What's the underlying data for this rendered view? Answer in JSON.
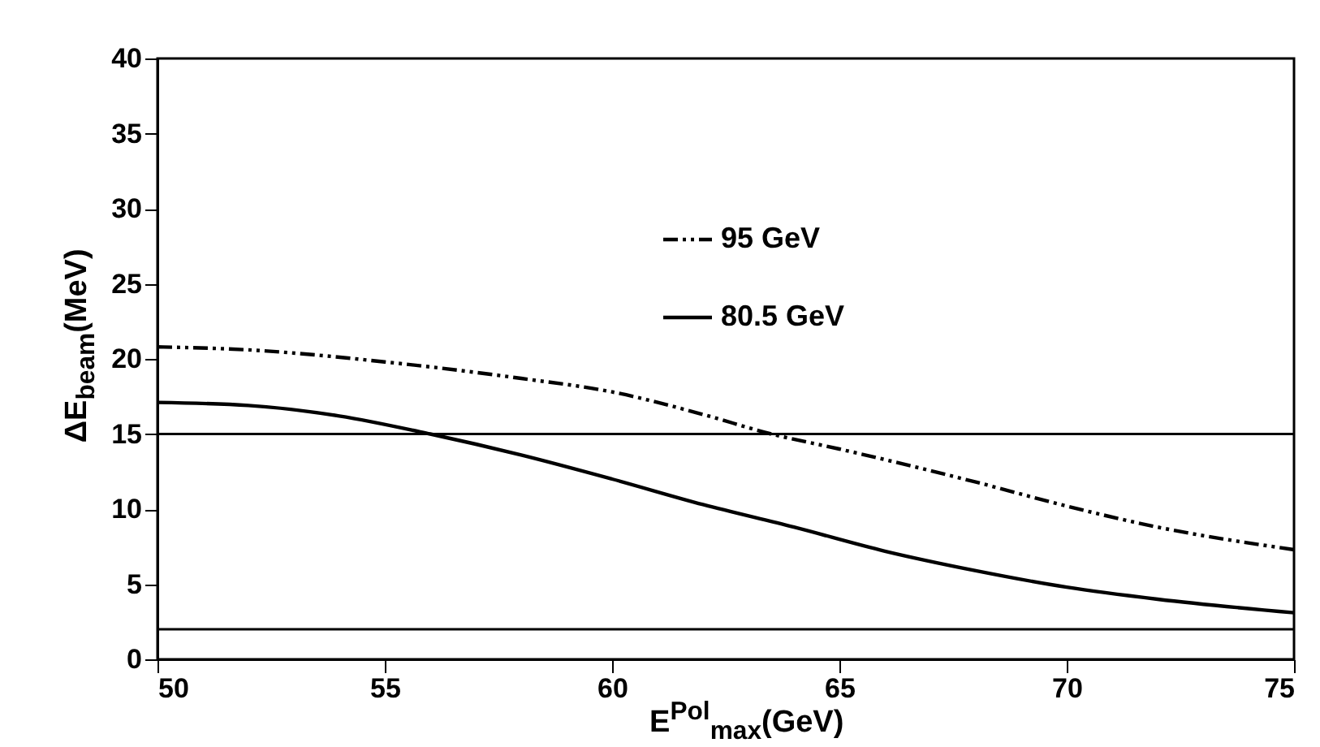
{
  "chart_data": {
    "type": "line",
    "xlabel": "E$^{Pol}$$_{max}$(GeV)",
    "ylabel": "ΔE$_{beam}$(MeV)",
    "xlim": [
      50,
      75
    ],
    "xticks": [
      50,
      55,
      60,
      65,
      70,
      75
    ],
    "ylim": [
      0,
      40
    ],
    "yticks": [
      0,
      5,
      10,
      15,
      20,
      25,
      30,
      35,
      40
    ],
    "grid": false,
    "legend": "top",
    "marker": "none",
    "series": [
      {
        "name": "95 GeV",
        "color": "#000000",
        "line_style": "dashed",
        "x": [
          50,
          52,
          55,
          58,
          60,
          62,
          63.5,
          65,
          68,
          70,
          72,
          75
        ],
        "values": [
          20.8,
          20.6,
          19.8,
          18.7,
          17.8,
          16.3,
          15,
          14,
          11.8,
          10.2,
          8.8,
          7.3
        ]
      },
      {
        "name": "80.5 GeV",
        "color": "#000000",
        "line_style": "solid",
        "x": [
          50,
          52,
          54,
          56,
          58,
          60,
          62,
          64,
          66,
          68,
          70,
          72,
          75
        ],
        "values": [
          17.1,
          16.9,
          16.2,
          15,
          13.6,
          12,
          10.3,
          8.8,
          7.2,
          5.9,
          4.8,
          4,
          3.1
        ]
      }
    ],
    "ref_lines": [
      {
        "axis": "y",
        "value": 15,
        "color": "#000000"
      },
      {
        "axis": "y",
        "value": 2,
        "color": "#000000"
      }
    ]
  }
}
